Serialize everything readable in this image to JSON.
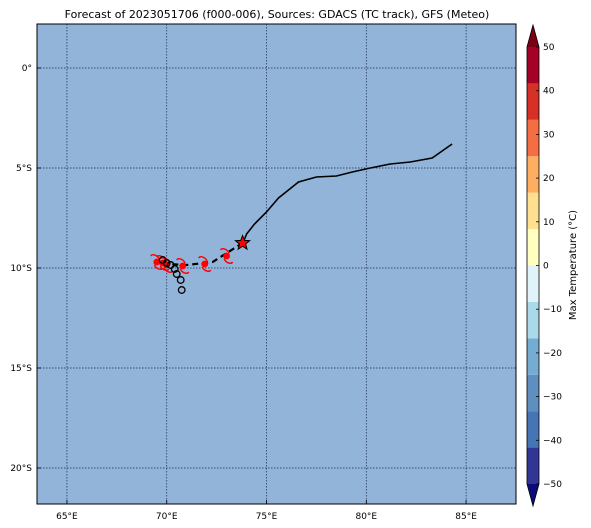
{
  "chart_data": {
    "type": "map",
    "title": "Forecast of 2023051706 (f000-006), Sources: GDACS (TC track), GFS (Meteo)",
    "map": {
      "lon_range": [
        63.5,
        87.5
      ],
      "lat_range": [
        -21.8,
        2.2
      ],
      "lon_ticks": [
        65,
        70,
        75,
        80,
        85
      ],
      "lon_tick_labels": [
        "65°E",
        "70°E",
        "75°E",
        "80°E",
        "85°E"
      ],
      "lat_ticks": [
        0,
        -5,
        -10,
        -15,
        -20
      ],
      "lat_tick_labels": [
        "0°",
        "5°S",
        "10°S",
        "15°S",
        "20°S"
      ],
      "gridlines": true,
      "background_color": "#92b4d9"
    },
    "observed_track": [
      [
        84.3,
        -3.8
      ],
      [
        83.3,
        -4.5
      ],
      [
        82.2,
        -4.7
      ],
      [
        81.2,
        -4.8
      ],
      [
        80.2,
        -5.0
      ],
      [
        79.3,
        -5.2
      ],
      [
        78.5,
        -5.4
      ],
      [
        77.5,
        -5.45
      ],
      [
        76.6,
        -5.7
      ],
      [
        76.1,
        -6.1
      ],
      [
        75.6,
        -6.5
      ],
      [
        75.0,
        -7.2
      ],
      [
        74.4,
        -7.8
      ],
      [
        74.0,
        -8.3
      ],
      [
        73.8,
        -8.8
      ]
    ],
    "current_position": [
      73.8,
      -8.75
    ],
    "forecast_track": [
      [
        73.8,
        -8.75
      ],
      [
        72.3,
        -9.7
      ],
      [
        71.0,
        -9.85
      ],
      [
        70.0,
        -9.8
      ]
    ],
    "cyclone_symbols": [
      [
        73.0,
        -9.4
      ],
      [
        71.9,
        -9.8
      ],
      [
        70.8,
        -9.9
      ],
      [
        70.0,
        -9.85
      ],
      [
        69.8,
        -9.75
      ],
      [
        69.5,
        -9.7
      ]
    ],
    "ensemble_points": [
      [
        69.8,
        -9.6
      ],
      [
        70.0,
        -9.75
      ],
      [
        70.2,
        -9.85
      ],
      [
        70.4,
        -10.05
      ],
      [
        70.5,
        -10.3
      ],
      [
        70.7,
        -10.6
      ],
      [
        70.75,
        -11.1
      ]
    ],
    "colorbar": {
      "label": "Max Temperature (°C)",
      "min": -50,
      "max": 50,
      "ticks": [
        50,
        40,
        30,
        20,
        10,
        0,
        -10,
        -20,
        -30,
        -40,
        -50
      ],
      "tick_labels": [
        "50",
        "40",
        "30",
        "20",
        "10",
        "0",
        "−10",
        "−20",
        "−30",
        "−40",
        "−50"
      ],
      "extend": "both",
      "colors": [
        "#313695",
        "#4575b4",
        "#5f8fbf",
        "#74add1",
        "#abd9e9",
        "#e0f3f8",
        "#ffffbf",
        "#fee090",
        "#fdae61",
        "#f46d43",
        "#d73027",
        "#a50026"
      ],
      "under_color": "#0b0b7a",
      "over_color": "#7a0016"
    }
  }
}
